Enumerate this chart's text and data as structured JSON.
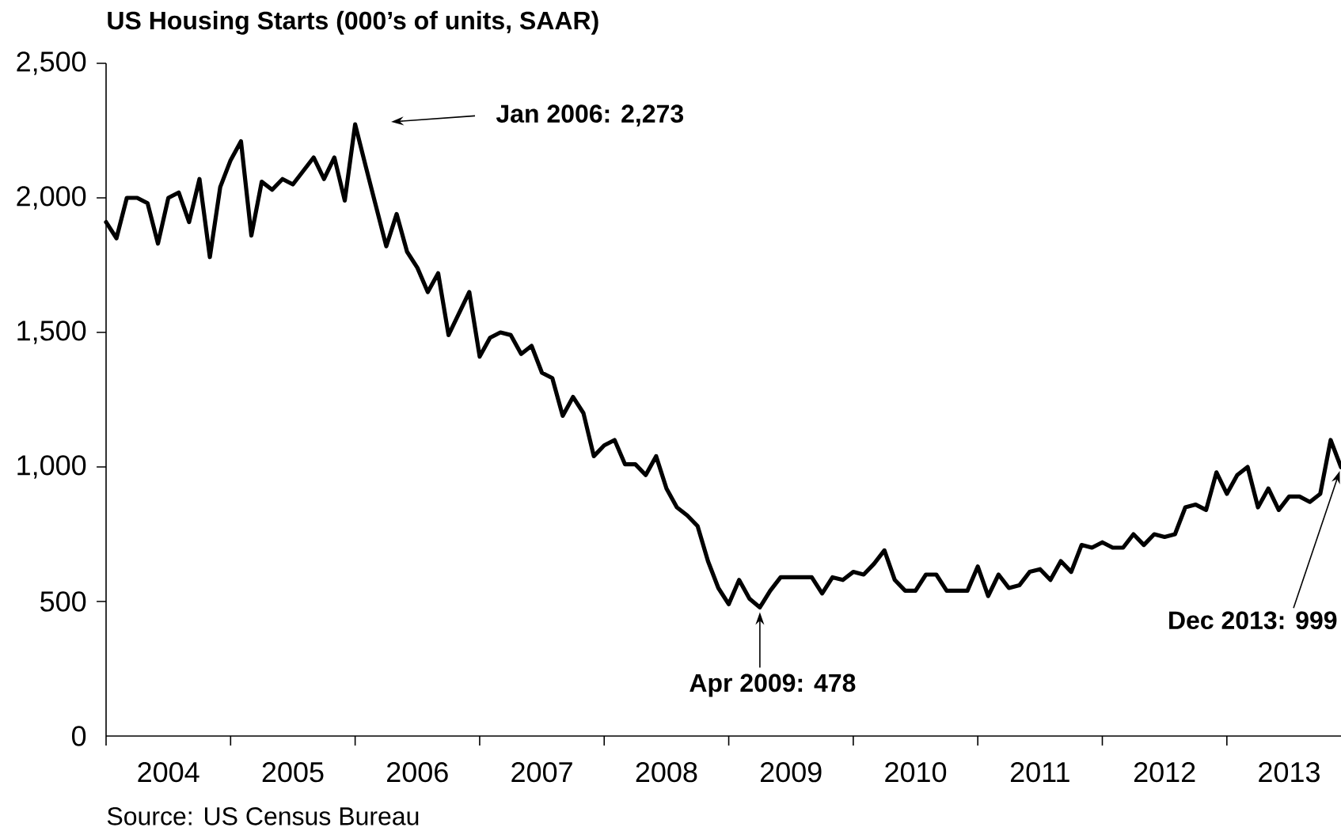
{
  "chart_data": {
    "type": "line",
    "title": "US Housing Starts (000’s of units, SAAR)",
    "x": [
      "2004-01",
      "2004-02",
      "2004-03",
      "2004-04",
      "2004-05",
      "2004-06",
      "2004-07",
      "2004-08",
      "2004-09",
      "2004-10",
      "2004-11",
      "2004-12",
      "2005-01",
      "2005-02",
      "2005-03",
      "2005-04",
      "2005-05",
      "2005-06",
      "2005-07",
      "2005-08",
      "2005-09",
      "2005-10",
      "2005-11",
      "2005-12",
      "2006-01",
      "2006-02",
      "2006-03",
      "2006-04",
      "2006-05",
      "2006-06",
      "2006-07",
      "2006-08",
      "2006-09",
      "2006-10",
      "2006-11",
      "2006-12",
      "2007-01",
      "2007-02",
      "2007-03",
      "2007-04",
      "2007-05",
      "2007-06",
      "2007-07",
      "2007-08",
      "2007-09",
      "2007-10",
      "2007-11",
      "2007-12",
      "2008-01",
      "2008-02",
      "2008-03",
      "2008-04",
      "2008-05",
      "2008-06",
      "2008-07",
      "2008-08",
      "2008-09",
      "2008-10",
      "2008-11",
      "2008-12",
      "2009-01",
      "2009-02",
      "2009-03",
      "2009-04",
      "2009-05",
      "2009-06",
      "2009-07",
      "2009-08",
      "2009-09",
      "2009-10",
      "2009-11",
      "2009-12",
      "2010-01",
      "2010-02",
      "2010-03",
      "2010-04",
      "2010-05",
      "2010-06",
      "2010-07",
      "2010-08",
      "2010-09",
      "2010-10",
      "2010-11",
      "2010-12",
      "2011-01",
      "2011-02",
      "2011-03",
      "2011-04",
      "2011-05",
      "2011-06",
      "2011-07",
      "2011-08",
      "2011-09",
      "2011-10",
      "2011-11",
      "2011-12",
      "2012-01",
      "2012-02",
      "2012-03",
      "2012-04",
      "2012-05",
      "2012-06",
      "2012-07",
      "2012-08",
      "2012-09",
      "2012-10",
      "2012-11",
      "2012-12",
      "2013-01",
      "2013-02",
      "2013-03",
      "2013-04",
      "2013-05",
      "2013-06",
      "2013-07",
      "2013-08",
      "2013-09",
      "2013-10",
      "2013-11",
      "2013-12"
    ],
    "series": [
      {
        "color": "#000000",
        "values": [
          1910,
          1850,
          2000,
          2000,
          1980,
          1830,
          2000,
          2020,
          1910,
          2070,
          1780,
          2040,
          2140,
          2210,
          1860,
          2060,
          2030,
          2070,
          2050,
          2100,
          2150,
          2070,
          2150,
          1990,
          2273,
          2120,
          1970,
          1820,
          1940,
          1800,
          1740,
          1650,
          1720,
          1490,
          1570,
          1650,
          1410,
          1480,
          1500,
          1490,
          1420,
          1450,
          1350,
          1330,
          1190,
          1260,
          1200,
          1040,
          1080,
          1100,
          1010,
          1010,
          970,
          1040,
          920,
          850,
          820,
          780,
          650,
          550,
          490,
          580,
          510,
          478,
          540,
          590,
          590,
          590,
          590,
          530,
          590,
          580,
          610,
          600,
          640,
          690,
          580,
          540,
          540,
          600,
          600,
          540,
          540,
          540,
          630,
          520,
          600,
          550,
          560,
          610,
          620,
          580,
          650,
          610,
          710,
          700,
          720,
          700,
          700,
          750,
          710,
          750,
          740,
          750,
          850,
          860,
          840,
          980,
          900,
          970,
          1000,
          850,
          920,
          840,
          890,
          890,
          870,
          900,
          1100,
          999
        ]
      }
    ],
    "xlim": [
      "2004-01",
      "2013-12"
    ],
    "xticks": [
      {
        "value": "2004-01",
        "label": null
      },
      {
        "value": "2005-01",
        "label": null
      },
      {
        "value": "2006-01",
        "label": null
      },
      {
        "value": "2007-01",
        "label": null
      },
      {
        "value": "2008-01",
        "label": null
      },
      {
        "value": "2009-01",
        "label": null
      },
      {
        "value": "2010-01",
        "label": null
      },
      {
        "value": "2011-01",
        "label": null
      },
      {
        "value": "2012-01",
        "label": null
      },
      {
        "value": "2013-01",
        "label": null
      },
      {
        "value": "2004-07",
        "label": "2004"
      },
      {
        "value": "2005-07",
        "label": "2005"
      },
      {
        "value": "2006-07",
        "label": "2006"
      },
      {
        "value": "2007-07",
        "label": "2007"
      },
      {
        "value": "2008-07",
        "label": "2008"
      },
      {
        "value": "2009-07",
        "label": "2009"
      },
      {
        "value": "2010-07",
        "label": "2010"
      },
      {
        "value": "2011-07",
        "label": "2011"
      },
      {
        "value": "2012-07",
        "label": "2012"
      },
      {
        "value": "2013-07",
        "label": "2013"
      }
    ],
    "ylim": [
      0,
      2500
    ],
    "yticks": [
      0,
      500,
      {
        "value": 1000,
        "label": "1,000"
      },
      {
        "value": 1500,
        "label": "1,500"
      },
      {
        "value": 2000,
        "label": "2,000"
      },
      {
        "value": 2500,
        "label": "2,500"
      }
    ],
    "annotations": [
      "Jan 2006: 2,273",
      {
        "text": "Apr 2009: 478",
        "x": "2009-04",
        "y": 478
      },
      {
        "text": "Dec 2013: 999",
        "x": "2013-12",
        "y": 999
      },
      "Source: US Census Bureau"
    ]
  }
}
